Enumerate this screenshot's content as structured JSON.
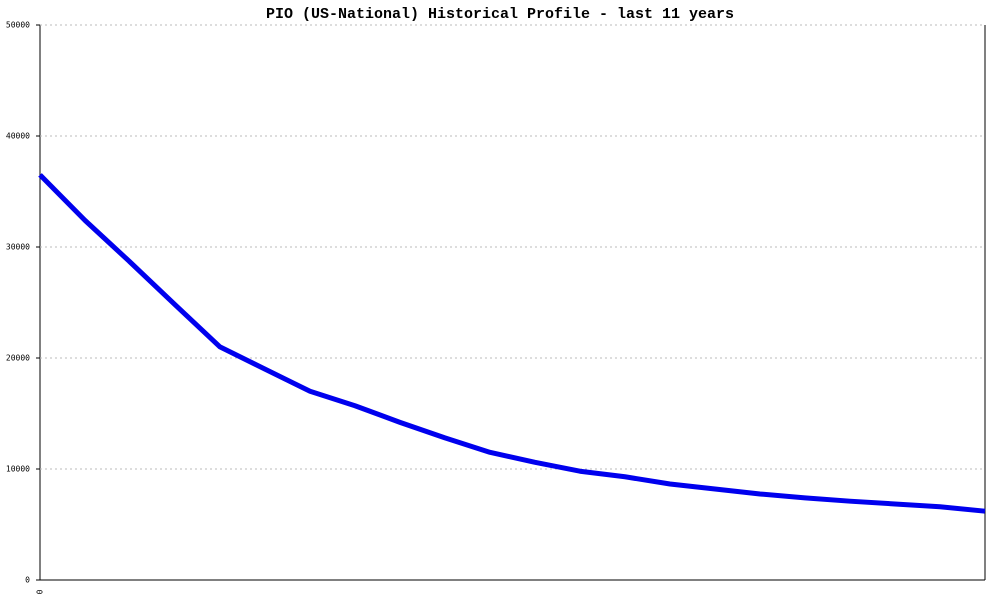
{
  "chart_data": {
    "type": "line",
    "title": "PIO (US-National) Historical Profile - last 11 years",
    "categories": [
      "0",
      null,
      null,
      null,
      null,
      null,
      null,
      null,
      null,
      null,
      null,
      null,
      null,
      null,
      null,
      null,
      null,
      null,
      null,
      null,
      null,
      null
    ],
    "values": [
      36500,
      32400,
      28650,
      24800,
      21000,
      19000,
      17000,
      15700,
      14200,
      12800,
      11500,
      10600,
      9800,
      9300,
      8650,
      8200,
      7750,
      7400,
      7100,
      6850,
      6600,
      6200
    ],
    "color": "#0000ee",
    "ylim": [
      0,
      50000
    ],
    "yticks": [
      0,
      10000,
      20000,
      30000,
      40000,
      50000
    ],
    "grid": true
  }
}
